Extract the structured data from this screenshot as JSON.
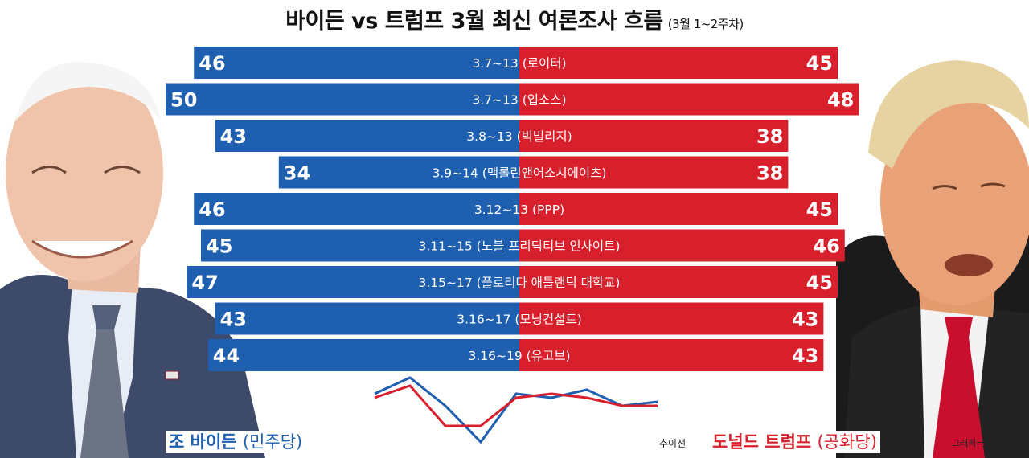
{
  "title": {
    "main": "바이든 vs 트럼프 3월 최신 여론조사 흐름",
    "sub": "(3월 1~2주차)"
  },
  "candidates": {
    "left": {
      "name": "조 바이든",
      "party": "(민주당)",
      "color": "#1f5fb0"
    },
    "right": {
      "name": "도널드 트럼프",
      "party": "(공화당)",
      "color": "#d8202c"
    }
  },
  "trend_label": "추이선",
  "credit": "그래픽=김예솔",
  "chart_data": {
    "type": "bar",
    "orientation": "horizontal-butterfly",
    "categories": [
      "3.7~13 (로이터)",
      "3.7~13 (입소스)",
      "3.8~13 (빅빌리지)",
      "3.9~14 (맥롤린앤어소시에이츠)",
      "3.12~13 (PPP)",
      "3.11~15 (노블 프리딕티브 인사이트)",
      "3.15~17 (플로리다 애틀랜틱 대학교)",
      "3.16~17  (모닝컨설트)",
      "3.16~19 (유고브)"
    ],
    "series": [
      {
        "name": "조 바이든",
        "color": "#1f5fb0",
        "values": [
          46,
          50,
          43,
          34,
          46,
          45,
          47,
          43,
          44
        ]
      },
      {
        "name": "도널드 트럼프",
        "color": "#d8202c",
        "values": [
          45,
          48,
          38,
          38,
          45,
          46,
          45,
          43,
          43
        ]
      }
    ],
    "trend_line": {
      "label": "추이선",
      "series_colors": [
        "#1f5fb0",
        "#d8202c"
      ]
    },
    "xlim": [
      0,
      50
    ]
  }
}
